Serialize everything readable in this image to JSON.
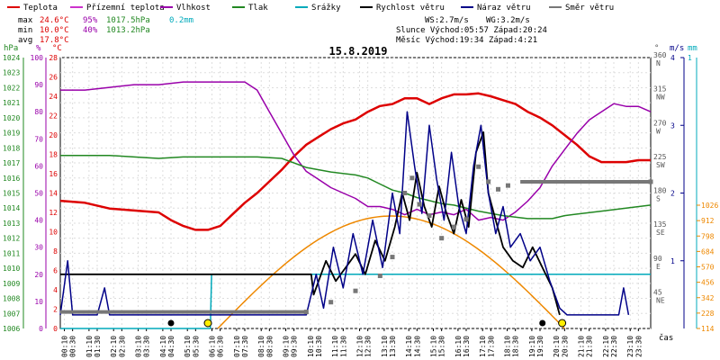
{
  "legend": [
    {
      "label": "Teplota",
      "color": "#dd0000"
    },
    {
      "label": "Přízemní teplota",
      "color": "#cc33cc"
    },
    {
      "label": "Vlhkost",
      "color": "#9900aa"
    },
    {
      "label": "Tlak",
      "color": "#228822"
    },
    {
      "label": "Srážky",
      "color": "#00aabb"
    },
    {
      "label": "Rychlost větru",
      "color": "#000000"
    },
    {
      "label": "Náraz větru",
      "color": "#000088"
    },
    {
      "label": "Směr větru",
      "color": "#777777"
    }
  ],
  "stats": {
    "max_label": "max",
    "max_temp": "24.6°C",
    "max_hum": "95%",
    "max_press": "1017.5hPa",
    "max_rain": "0.2mm",
    "min_label": "min",
    "min_temp": "10.0°C",
    "min_hum": "40%",
    "min_press": "1013.2hPa",
    "avg_label": "avg",
    "avg_temp": "17.8°C"
  },
  "wind_info": {
    "ws": "WS:2.7m/s",
    "wg": "WG:3.2m/s",
    "sun": "Slunce Východ:05:57  Západ:20:24",
    "moon": "Měsíc  Východ:19:34  Západ:4:21"
  },
  "title": "15.8.2019",
  "axes": {
    "hpa_label": "hPa",
    "pct_label": "%",
    "c_label": "°C",
    "deg_label": "°",
    "ms_label": "m/s",
    "mm_label": "mm",
    "time_label": "čas",
    "hpa_ticks": [
      "1024",
      "1023",
      "1022",
      "1021",
      "1020",
      "1019",
      "1018",
      "1017",
      "1016",
      "1015",
      "1014",
      "1013",
      "1012",
      "1011",
      "1010",
      "1009",
      "1008",
      "1007",
      "1006"
    ],
    "pct_ticks": [
      "100",
      "90",
      "80",
      "70",
      "60",
      "50",
      "40",
      "30",
      "20",
      "10",
      "0"
    ],
    "c_ticks": [
      "28",
      "26",
      "24",
      "22",
      "20",
      "18",
      "16",
      "14",
      "12",
      "10",
      "8",
      "6",
      "4",
      "2",
      "0"
    ],
    "dir_ticks": [
      {
        "deg": "360",
        "dir": "N"
      },
      {
        "deg": "315",
        "dir": "NW"
      },
      {
        "deg": "270",
        "dir": "W"
      },
      {
        "deg": "225",
        "dir": "SW"
      },
      {
        "deg": "180",
        "dir": "S"
      },
      {
        "deg": "135",
        "dir": "SE"
      },
      {
        "deg": "90",
        "dir": "E"
      },
      {
        "deg": "45",
        "dir": "NE"
      }
    ],
    "ms_ticks": [
      "4",
      "3",
      "2",
      "1"
    ],
    "ms_top": "1",
    "mm_ticks": [
      "1026",
      "912",
      "798",
      "684",
      "570",
      "456",
      "342",
      "228",
      "114"
    ],
    "time_ticks": [
      "00:10",
      "00:30",
      "01:10",
      "01:30",
      "02:10",
      "02:30",
      "03:10",
      "03:30",
      "04:10",
      "04:30",
      "05:10",
      "05:30",
      "06:10",
      "06:30",
      "07:10",
      "07:30",
      "08:10",
      "08:30",
      "09:10",
      "09:30",
      "10:10",
      "10:30",
      "11:10",
      "11:30",
      "12:10",
      "12:30",
      "13:10",
      "13:30",
      "14:10",
      "14:30",
      "15:10",
      "15:30",
      "16:10",
      "16:30",
      "17:10",
      "17:30",
      "18:10",
      "18:30",
      "19:10",
      "19:30",
      "20:10",
      "20:30",
      "21:10",
      "21:30",
      "22:10",
      "22:30",
      "23:10",
      "23:30"
    ]
  },
  "chart_data": {
    "type": "line",
    "title": "15.8.2019",
    "x_unit": "hour",
    "xlim": [
      0,
      24
    ],
    "series": [
      {
        "name": "Teplota",
        "unit": "°C",
        "color": "#dd0000",
        "points": [
          [
            0,
            13.2
          ],
          [
            1,
            13.0
          ],
          [
            2,
            12.4
          ],
          [
            3,
            12.2
          ],
          [
            4,
            12.0
          ],
          [
            4.5,
            11.2
          ],
          [
            5,
            10.6
          ],
          [
            5.5,
            10.2
          ],
          [
            6,
            10.2
          ],
          [
            6.5,
            10.6
          ],
          [
            7,
            11.8
          ],
          [
            7.5,
            13.0
          ],
          [
            8,
            14.0
          ],
          [
            8.5,
            15.2
          ],
          [
            9,
            16.4
          ],
          [
            9.5,
            17.8
          ],
          [
            10,
            19.0
          ],
          [
            10.5,
            19.8
          ],
          [
            11,
            20.6
          ],
          [
            11.5,
            21.2
          ],
          [
            12,
            21.6
          ],
          [
            12.5,
            22.4
          ],
          [
            13,
            23.0
          ],
          [
            13.5,
            23.2
          ],
          [
            14,
            23.8
          ],
          [
            14.5,
            23.8
          ],
          [
            15,
            23.2
          ],
          [
            15.5,
            23.8
          ],
          [
            16,
            24.2
          ],
          [
            16.5,
            24.2
          ],
          [
            17,
            24.3
          ],
          [
            17.5,
            24.0
          ],
          [
            18,
            23.6
          ],
          [
            18.5,
            23.2
          ],
          [
            19,
            22.4
          ],
          [
            19.5,
            21.8
          ],
          [
            20,
            21.0
          ],
          [
            20.5,
            20.0
          ],
          [
            21,
            19.0
          ],
          [
            21.5,
            17.8
          ],
          [
            22,
            17.2
          ],
          [
            22.5,
            17.2
          ],
          [
            23,
            17.2
          ],
          [
            23.5,
            17.4
          ],
          [
            24,
            17.4
          ]
        ]
      },
      {
        "name": "Vlhkost",
        "unit": "%",
        "color": "#9900aa",
        "points": [
          [
            0,
            88
          ],
          [
            1,
            88
          ],
          [
            2,
            89
          ],
          [
            3,
            90
          ],
          [
            4,
            90
          ],
          [
            5,
            91
          ],
          [
            6,
            91
          ],
          [
            7,
            91
          ],
          [
            7.5,
            91
          ],
          [
            8,
            88
          ],
          [
            8.5,
            80
          ],
          [
            9,
            72
          ],
          [
            9.5,
            64
          ],
          [
            10,
            58
          ],
          [
            10.5,
            55
          ],
          [
            11,
            52
          ],
          [
            11.5,
            50
          ],
          [
            12,
            48
          ],
          [
            12.5,
            45
          ],
          [
            13,
            45
          ],
          [
            13.5,
            44
          ],
          [
            14,
            42
          ],
          [
            14.5,
            44
          ],
          [
            15,
            42
          ],
          [
            15.5,
            43
          ],
          [
            16,
            42
          ],
          [
            16.5,
            44
          ],
          [
            17,
            40
          ],
          [
            17.5,
            41
          ],
          [
            18,
            40
          ],
          [
            18.5,
            43
          ],
          [
            19,
            47
          ],
          [
            19.5,
            52
          ],
          [
            20,
            60
          ],
          [
            20.5,
            66
          ],
          [
            21,
            72
          ],
          [
            21.5,
            77
          ],
          [
            22,
            80
          ],
          [
            22.5,
            83
          ],
          [
            23,
            82
          ],
          [
            23.5,
            82
          ],
          [
            24,
            80
          ]
        ]
      },
      {
        "name": "Tlak",
        "unit": "hPa",
        "color": "#228822",
        "points": [
          [
            0,
            1017.5
          ],
          [
            1,
            1017.5
          ],
          [
            2,
            1017.5
          ],
          [
            3,
            1017.4
          ],
          [
            4,
            1017.3
          ],
          [
            5,
            1017.4
          ],
          [
            6,
            1017.4
          ],
          [
            7,
            1017.4
          ],
          [
            8,
            1017.4
          ],
          [
            9,
            1017.3
          ],
          [
            10,
            1016.7
          ],
          [
            11,
            1016.4
          ],
          [
            12,
            1016.2
          ],
          [
            12.5,
            1016.0
          ],
          [
            13,
            1015.6
          ],
          [
            13.5,
            1015.2
          ],
          [
            14,
            1015.0
          ],
          [
            14.5,
            1014.7
          ],
          [
            15,
            1014.5
          ],
          [
            15.5,
            1014.3
          ],
          [
            16,
            1014.2
          ],
          [
            17,
            1013.8
          ],
          [
            18,
            1013.5
          ],
          [
            19,
            1013.3
          ],
          [
            20,
            1013.3
          ],
          [
            20.5,
            1013.5
          ],
          [
            21,
            1013.6
          ],
          [
            22,
            1013.8
          ],
          [
            23,
            1014.0
          ],
          [
            24,
            1014.2
          ]
        ]
      },
      {
        "name": "Srážky",
        "unit": "mm",
        "color": "#00aabb",
        "points": [
          [
            0,
            0
          ],
          [
            6.1,
            0
          ],
          [
            6.15,
            0.2
          ],
          [
            24,
            0.2
          ]
        ]
      },
      {
        "name": "Rychlost větru",
        "unit": "m/s",
        "color": "#000000",
        "points": [
          [
            0,
            0.8
          ],
          [
            10.2,
            0.8
          ],
          [
            10.3,
            0.5
          ],
          [
            10.8,
            1.0
          ],
          [
            11.2,
            0.7
          ],
          [
            11.6,
            0.9
          ],
          [
            12,
            1.1
          ],
          [
            12.4,
            0.8
          ],
          [
            12.8,
            1.3
          ],
          [
            13.2,
            1.0
          ],
          [
            13.6,
            1.5
          ],
          [
            13.9,
            2.0
          ],
          [
            14.2,
            1.6
          ],
          [
            14.5,
            2.3
          ],
          [
            14.8,
            1.8
          ],
          [
            15.1,
            1.5
          ],
          [
            15.4,
            2.1
          ],
          [
            15.7,
            1.7
          ],
          [
            16,
            1.4
          ],
          [
            16.3,
            1.9
          ],
          [
            16.6,
            1.5
          ],
          [
            16.9,
            2.6
          ],
          [
            17.2,
            2.9
          ],
          [
            17.4,
            2.0
          ],
          [
            17.7,
            1.6
          ],
          [
            18,
            1.2
          ],
          [
            18.4,
            1.0
          ],
          [
            18.8,
            0.9
          ],
          [
            19.2,
            1.2
          ],
          [
            19.6,
            0.9
          ],
          [
            20,
            0.6
          ],
          [
            20.3,
            0.2
          ]
        ]
      },
      {
        "name": "Náraz větru",
        "unit": "m/s",
        "color": "#000088",
        "points": [
          [
            0,
            0.2
          ],
          [
            0.3,
            1.0
          ],
          [
            0.5,
            0.2
          ],
          [
            1.5,
            0.2
          ],
          [
            1.8,
            0.6
          ],
          [
            2,
            0.2
          ],
          [
            10,
            0.2
          ],
          [
            10.4,
            0.8
          ],
          [
            10.7,
            0.3
          ],
          [
            11.1,
            1.2
          ],
          [
            11.5,
            0.6
          ],
          [
            11.9,
            1.4
          ],
          [
            12.3,
            0.8
          ],
          [
            12.7,
            1.6
          ],
          [
            13.1,
            0.9
          ],
          [
            13.5,
            2.0
          ],
          [
            13.8,
            1.4
          ],
          [
            14.1,
            3.2
          ],
          [
            14.4,
            2.4
          ],
          [
            14.7,
            1.7
          ],
          [
            15,
            3.0
          ],
          [
            15.3,
            2.2
          ],
          [
            15.6,
            1.6
          ],
          [
            15.9,
            2.6
          ],
          [
            16.2,
            1.8
          ],
          [
            16.5,
            1.4
          ],
          [
            16.8,
            2.4
          ],
          [
            17.1,
            3.0
          ],
          [
            17.4,
            2.0
          ],
          [
            17.7,
            1.4
          ],
          [
            18,
            1.8
          ],
          [
            18.3,
            1.2
          ],
          [
            18.7,
            1.4
          ],
          [
            19.1,
            1.0
          ],
          [
            19.5,
            1.2
          ],
          [
            19.9,
            0.7
          ],
          [
            20.3,
            0.3
          ],
          [
            20.6,
            0.2
          ],
          [
            22.7,
            0.2
          ],
          [
            22.9,
            0.6
          ],
          [
            23.1,
            0.2
          ]
        ]
      },
      {
        "name": "Směr větru",
        "unit": "°",
        "color": "#777777",
        "points": [
          [
            0,
            22
          ],
          [
            10,
            22
          ],
          [
            11,
            35
          ],
          [
            12,
            50
          ],
          [
            13,
            70
          ],
          [
            13.5,
            95
          ],
          [
            14,
            180
          ],
          [
            14.3,
            200
          ],
          [
            14.6,
            165
          ],
          [
            15,
            150
          ],
          [
            15.5,
            120
          ],
          [
            16,
            135
          ],
          [
            16.5,
            145
          ],
          [
            17,
            215
          ],
          [
            17.4,
            195
          ],
          [
            17.8,
            185
          ],
          [
            18.2,
            190
          ],
          [
            18.7,
            195
          ],
          [
            24,
            195
          ]
        ]
      }
    ],
    "solar_curve": {
      "color": "#ee8800",
      "rise": 6.4,
      "set": 20.5
    },
    "sun_markers": [
      {
        "x": 6.0,
        "label": "sunrise"
      },
      {
        "x": 20.4,
        "label": "sunset"
      }
    ],
    "moon_markers": [
      {
        "x": 4.5
      },
      {
        "x": 19.6
      }
    ],
    "ranges": {
      "temp_c": [
        0,
        28
      ],
      "humidity_pct": [
        0,
        100
      ],
      "pressure_hpa": [
        1006,
        1024
      ],
      "wind_ms": [
        0,
        4
      ],
      "direction_deg": [
        0,
        360
      ],
      "rain_mm": [
        0,
        1
      ]
    }
  }
}
